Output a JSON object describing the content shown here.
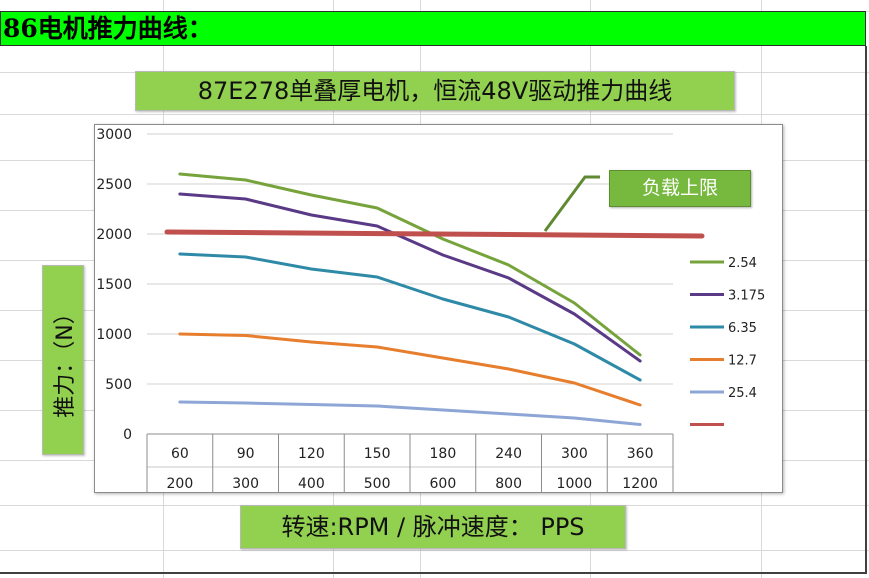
{
  "header": {
    "title": "86电机推力曲线："
  },
  "chart_data": {
    "type": "line",
    "title": "87E278单叠厚电机，恒流48V驱动推力曲线",
    "ylabel": "推力：（N）",
    "xlabel": "转速:RPM / 脉冲速度： PPS",
    "categories": [
      "60",
      "90",
      "120",
      "150",
      "180",
      "240",
      "300",
      "360"
    ],
    "categories_secondary": [
      "200",
      "300",
      "400",
      "500",
      "600",
      "800",
      "1000",
      "1200"
    ],
    "ylim": [
      0,
      3000
    ],
    "yticks": [
      0,
      500,
      1000,
      1500,
      2000,
      2500,
      3000
    ],
    "grid": true,
    "legend_position": "right",
    "series": [
      {
        "name": "2.54",
        "color": "#77a33c",
        "values": [
          2600,
          2540,
          2390,
          2260,
          1950,
          1690,
          1310,
          790
        ]
      },
      {
        "name": "3.175",
        "color": "#5a3a86",
        "values": [
          2400,
          2350,
          2190,
          2080,
          1790,
          1560,
          1200,
          730
        ]
      },
      {
        "name": "6.35",
        "color": "#2e8aa6",
        "values": [
          1800,
          1770,
          1650,
          1570,
          1350,
          1170,
          900,
          540
        ]
      },
      {
        "name": "12.7",
        "color": "#e67e2e",
        "values": [
          1000,
          985,
          920,
          870,
          760,
          650,
          510,
          290
        ]
      },
      {
        "name": "25.4",
        "color": "#8ea6d6",
        "values": [
          320,
          310,
          295,
          280,
          240,
          200,
          160,
          95
        ]
      },
      {
        "name": "",
        "color": "#c0504d",
        "values": [
          2020,
          2015,
          2010,
          2005,
          2000,
          1995,
          1990,
          1980
        ]
      }
    ],
    "annotation": {
      "label": "负载上限"
    }
  }
}
